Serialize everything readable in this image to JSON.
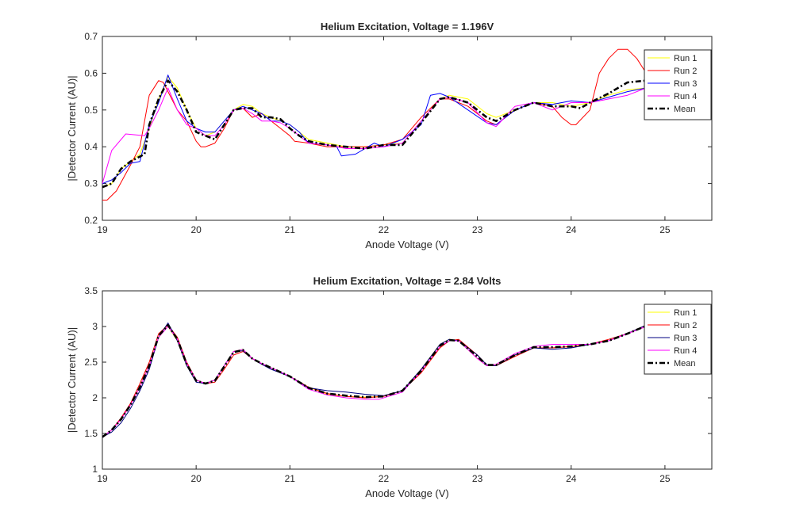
{
  "chart_data": [
    {
      "type": "line",
      "title": "Helium Excitation, Voltage = 1.196V",
      "xlabel": "Anode Voltage (V)",
      "ylabel": "|Detector Current (AU)|",
      "xlim": [
        19,
        25.5
      ],
      "ylim": [
        0.2,
        0.7
      ],
      "xticks": [
        19,
        20,
        21,
        22,
        23,
        24,
        25
      ],
      "yticks": [
        0.2,
        0.3,
        0.4,
        0.5,
        0.6,
        0.7
      ],
      "xtick_labels": [
        "19",
        "20",
        "21",
        "22",
        "23",
        "24",
        "25"
      ],
      "ytick_labels": [
        "0.2",
        "0.3",
        "0.4",
        "0.5",
        "0.6",
        "0.7"
      ],
      "grid": false,
      "legend_position": "top-right",
      "series": [
        {
          "name": "Run 1",
          "color": "#ffff00",
          "style": "solid",
          "x": [
            19.0,
            19.1,
            19.2,
            19.3,
            19.4,
            19.5,
            19.6,
            19.7,
            19.8,
            19.9,
            20.0,
            20.1,
            20.2,
            20.3,
            20.4,
            20.5,
            20.6,
            20.7,
            20.8,
            20.9,
            21.0,
            21.1,
            21.2,
            21.4,
            21.6,
            21.8,
            22.0,
            22.2,
            22.4,
            22.6,
            22.7,
            22.9,
            23.1,
            23.2,
            23.4,
            23.6,
            23.8,
            24.0,
            24.2,
            24.4,
            24.6,
            24.8
          ],
          "y": [
            0.29,
            0.3,
            0.34,
            0.36,
            0.38,
            0.45,
            0.53,
            0.59,
            0.56,
            0.5,
            0.45,
            0.43,
            0.44,
            0.47,
            0.5,
            0.515,
            0.51,
            0.49,
            0.48,
            0.47,
            0.46,
            0.44,
            0.42,
            0.41,
            0.4,
            0.4,
            0.405,
            0.41,
            0.47,
            0.53,
            0.54,
            0.53,
            0.49,
            0.48,
            0.5,
            0.52,
            0.52,
            0.51,
            0.52,
            0.54,
            0.555,
            0.56
          ]
        },
        {
          "name": "Run 2",
          "color": "#ff0000",
          "style": "solid",
          "x": [
            19.0,
            19.05,
            19.15,
            19.3,
            19.4,
            19.5,
            19.6,
            19.65,
            19.7,
            19.8,
            19.9,
            20.0,
            20.05,
            20.1,
            20.2,
            20.3,
            20.4,
            20.5,
            20.6,
            20.7,
            20.8,
            20.9,
            21.0,
            21.05,
            21.2,
            21.4,
            21.6,
            21.8,
            22.0,
            22.2,
            22.4,
            22.6,
            22.7,
            22.9,
            23.1,
            23.2,
            23.4,
            23.6,
            23.8,
            23.9,
            24.0,
            24.05,
            24.2,
            24.3,
            24.4,
            24.5,
            24.6,
            24.7,
            24.8
          ],
          "y": [
            0.255,
            0.255,
            0.28,
            0.35,
            0.4,
            0.54,
            0.58,
            0.575,
            0.55,
            0.5,
            0.47,
            0.415,
            0.4,
            0.4,
            0.41,
            0.45,
            0.5,
            0.505,
            0.48,
            0.49,
            0.47,
            0.45,
            0.43,
            0.415,
            0.41,
            0.4,
            0.4,
            0.4,
            0.405,
            0.42,
            0.48,
            0.53,
            0.53,
            0.51,
            0.47,
            0.46,
            0.5,
            0.52,
            0.51,
            0.48,
            0.46,
            0.46,
            0.5,
            0.6,
            0.64,
            0.665,
            0.665,
            0.64,
            0.6
          ]
        },
        {
          "name": "Run 3",
          "color": "#0000ff",
          "style": "solid",
          "x": [
            19.0,
            19.1,
            19.2,
            19.3,
            19.4,
            19.5,
            19.6,
            19.7,
            19.8,
            19.9,
            20.0,
            20.1,
            20.2,
            20.3,
            20.4,
            20.5,
            20.6,
            20.7,
            20.8,
            20.9,
            21.0,
            21.1,
            21.2,
            21.4,
            21.5,
            21.55,
            21.7,
            21.9,
            22.0,
            22.2,
            22.4,
            22.5,
            22.6,
            22.7,
            22.9,
            23.1,
            23.2,
            23.4,
            23.6,
            23.8,
            24.0,
            24.2,
            24.4,
            24.6,
            24.8
          ],
          "y": [
            0.3,
            0.31,
            0.33,
            0.355,
            0.36,
            0.46,
            0.52,
            0.595,
            0.53,
            0.47,
            0.45,
            0.44,
            0.44,
            0.47,
            0.5,
            0.51,
            0.5,
            0.49,
            0.47,
            0.47,
            0.46,
            0.44,
            0.41,
            0.405,
            0.4,
            0.375,
            0.38,
            0.41,
            0.4,
            0.42,
            0.46,
            0.54,
            0.545,
            0.535,
            0.5,
            0.465,
            0.46,
            0.5,
            0.52,
            0.515,
            0.525,
            0.52,
            0.535,
            0.55,
            0.56
          ]
        },
        {
          "name": "Run 4",
          "color": "#ff00ff",
          "style": "solid",
          "x": [
            19.0,
            19.1,
            19.25,
            19.45,
            19.5,
            19.6,
            19.7,
            19.8,
            19.9,
            20.0,
            20.1,
            20.2,
            20.3,
            20.4,
            20.5,
            20.6,
            20.7,
            20.8,
            20.9,
            21.0,
            21.2,
            21.4,
            21.6,
            21.8,
            22.0,
            22.2,
            22.4,
            22.6,
            22.7,
            22.9,
            23.1,
            23.2,
            23.4,
            23.6,
            23.8,
            24.0,
            24.2,
            24.4,
            24.6,
            24.8
          ],
          "y": [
            0.3,
            0.39,
            0.435,
            0.43,
            0.45,
            0.5,
            0.56,
            0.5,
            0.46,
            0.45,
            0.43,
            0.43,
            0.46,
            0.5,
            0.505,
            0.49,
            0.47,
            0.47,
            0.465,
            0.45,
            0.41,
            0.405,
            0.395,
            0.395,
            0.4,
            0.41,
            0.47,
            0.53,
            0.535,
            0.52,
            0.465,
            0.455,
            0.51,
            0.52,
            0.5,
            0.52,
            0.52,
            0.53,
            0.54,
            0.56
          ]
        },
        {
          "name": "Mean",
          "color": "#000000",
          "style": "dashdot",
          "x": [
            19.0,
            19.1,
            19.2,
            19.3,
            19.45,
            19.5,
            19.6,
            19.7,
            19.8,
            19.9,
            20.0,
            20.1,
            20.2,
            20.3,
            20.4,
            20.5,
            20.6,
            20.7,
            20.8,
            20.9,
            21.0,
            21.1,
            21.2,
            21.4,
            21.6,
            21.8,
            22.0,
            22.2,
            22.4,
            22.6,
            22.7,
            22.9,
            23.1,
            23.2,
            23.4,
            23.6,
            23.8,
            24.0,
            24.1,
            24.2,
            24.4,
            24.6,
            24.8
          ],
          "y": [
            0.29,
            0.3,
            0.34,
            0.36,
            0.38,
            0.46,
            0.53,
            0.58,
            0.55,
            0.5,
            0.44,
            0.43,
            0.42,
            0.46,
            0.5,
            0.505,
            0.505,
            0.48,
            0.48,
            0.475,
            0.45,
            0.43,
            0.415,
            0.405,
            0.4,
            0.395,
            0.405,
            0.405,
            0.465,
            0.53,
            0.535,
            0.52,
            0.48,
            0.47,
            0.5,
            0.52,
            0.51,
            0.51,
            0.505,
            0.52,
            0.545,
            0.575,
            0.58
          ]
        }
      ]
    },
    {
      "type": "line",
      "title": "Helium Excitation, Voltage = 2.84 Volts",
      "xlabel": "Anode Voltage (V)",
      "ylabel": "|Detector Current (AU)|",
      "xlim": [
        19,
        25.5
      ],
      "ylim": [
        1,
        3.5
      ],
      "xticks": [
        19,
        20,
        21,
        22,
        23,
        24,
        25
      ],
      "yticks": [
        1,
        1.5,
        2,
        2.5,
        3,
        3.5
      ],
      "xtick_labels": [
        "19",
        "20",
        "21",
        "22",
        "23",
        "24",
        "25"
      ],
      "ytick_labels": [
        "1",
        "1.5",
        "2",
        "2.5",
        "3",
        "3.5"
      ],
      "grid": false,
      "legend_position": "top-right",
      "series": [
        {
          "name": "Run 1",
          "color": "#ffff00",
          "style": "solid",
          "x": [
            19.0,
            19.1,
            19.2,
            19.3,
            19.4,
            19.5,
            19.6,
            19.7,
            19.8,
            19.9,
            20.0,
            20.1,
            20.2,
            20.3,
            20.4,
            20.5,
            20.6,
            20.7,
            20.8,
            21.0,
            21.2,
            21.4,
            21.6,
            21.8,
            22.0,
            22.2,
            22.4,
            22.6,
            22.7,
            22.8,
            23.0,
            23.1,
            23.2,
            23.4,
            23.6,
            23.8,
            24.0,
            24.2,
            24.4,
            24.6,
            24.8
          ],
          "y": [
            1.45,
            1.55,
            1.7,
            1.9,
            2.15,
            2.45,
            2.85,
            3.0,
            2.8,
            2.45,
            2.25,
            2.2,
            2.25,
            2.45,
            2.65,
            2.68,
            2.55,
            2.48,
            2.42,
            2.3,
            2.15,
            2.05,
            2.02,
            2.01,
            2.02,
            2.1,
            2.4,
            2.75,
            2.82,
            2.8,
            2.55,
            2.45,
            2.46,
            2.6,
            2.7,
            2.7,
            2.72,
            2.75,
            2.8,
            2.9,
            3.0
          ]
        },
        {
          "name": "Run 2",
          "color": "#ff0000",
          "style": "solid",
          "x": [
            19.0,
            19.1,
            19.2,
            19.3,
            19.4,
            19.5,
            19.6,
            19.7,
            19.8,
            19.9,
            20.0,
            20.1,
            20.2,
            20.3,
            20.4,
            20.5,
            20.6,
            20.7,
            20.8,
            21.0,
            21.2,
            21.4,
            21.6,
            21.8,
            22.0,
            22.2,
            22.4,
            22.6,
            22.7,
            22.8,
            23.0,
            23.1,
            23.2,
            23.4,
            23.6,
            23.8,
            24.0,
            24.2,
            24.4,
            24.6,
            24.8
          ],
          "y": [
            1.45,
            1.55,
            1.72,
            1.92,
            2.2,
            2.5,
            2.9,
            3.02,
            2.85,
            2.5,
            2.25,
            2.2,
            2.22,
            2.4,
            2.6,
            2.65,
            2.55,
            2.48,
            2.42,
            2.3,
            2.15,
            2.06,
            2.02,
            2.0,
            2.02,
            2.1,
            2.35,
            2.7,
            2.8,
            2.82,
            2.6,
            2.46,
            2.45,
            2.58,
            2.7,
            2.7,
            2.72,
            2.75,
            2.82,
            2.9,
            3.02
          ]
        },
        {
          "name": "Run 3",
          "color": "#000080",
          "style": "solid",
          "x": [
            19.0,
            19.1,
            19.2,
            19.3,
            19.4,
            19.5,
            19.6,
            19.7,
            19.8,
            19.9,
            20.0,
            20.1,
            20.2,
            20.3,
            20.4,
            20.5,
            20.6,
            20.7,
            20.8,
            21.0,
            21.2,
            21.4,
            21.6,
            21.8,
            22.0,
            22.2,
            22.4,
            22.6,
            22.7,
            22.8,
            23.0,
            23.1,
            23.2,
            23.4,
            23.6,
            23.8,
            24.0,
            24.2,
            24.4,
            24.6,
            24.8
          ],
          "y": [
            1.45,
            1.52,
            1.65,
            1.85,
            2.1,
            2.4,
            2.85,
            3.05,
            2.8,
            2.45,
            2.22,
            2.2,
            2.25,
            2.45,
            2.65,
            2.66,
            2.55,
            2.47,
            2.4,
            2.3,
            2.14,
            2.1,
            2.08,
            2.05,
            2.03,
            2.1,
            2.4,
            2.75,
            2.82,
            2.8,
            2.6,
            2.46,
            2.45,
            2.6,
            2.7,
            2.68,
            2.7,
            2.75,
            2.8,
            2.9,
            3.02
          ]
        },
        {
          "name": "Run 4",
          "color": "#ff00ff",
          "style": "solid",
          "x": [
            19.0,
            19.1,
            19.2,
            19.3,
            19.4,
            19.5,
            19.6,
            19.7,
            19.8,
            19.9,
            20.0,
            20.1,
            20.2,
            20.3,
            20.4,
            20.5,
            20.6,
            20.7,
            20.8,
            21.0,
            21.2,
            21.4,
            21.6,
            21.8,
            21.95,
            22.2,
            22.4,
            22.6,
            22.7,
            22.8,
            23.0,
            23.1,
            23.2,
            23.4,
            23.6,
            23.8,
            24.0,
            24.2,
            24.4,
            24.6,
            24.8
          ],
          "y": [
            1.45,
            1.55,
            1.7,
            1.9,
            2.15,
            2.45,
            2.85,
            3.0,
            2.82,
            2.48,
            2.25,
            2.2,
            2.25,
            2.45,
            2.65,
            2.68,
            2.55,
            2.48,
            2.42,
            2.3,
            2.12,
            2.04,
            2.0,
            1.98,
            1.98,
            2.08,
            2.38,
            2.72,
            2.8,
            2.8,
            2.55,
            2.45,
            2.47,
            2.62,
            2.72,
            2.75,
            2.75,
            2.75,
            2.8,
            2.9,
            3.0
          ]
        },
        {
          "name": "Mean",
          "color": "#000000",
          "style": "dashdot",
          "x": [
            19.0,
            19.1,
            19.2,
            19.3,
            19.4,
            19.5,
            19.6,
            19.7,
            19.8,
            19.9,
            20.0,
            20.1,
            20.2,
            20.3,
            20.4,
            20.5,
            20.6,
            20.7,
            20.8,
            21.0,
            21.2,
            21.4,
            21.6,
            21.8,
            22.0,
            22.2,
            22.4,
            22.6,
            22.7,
            22.8,
            23.0,
            23.1,
            23.2,
            23.4,
            23.6,
            23.8,
            24.0,
            24.2,
            24.4,
            24.6,
            24.8
          ],
          "y": [
            1.45,
            1.55,
            1.7,
            1.9,
            2.15,
            2.45,
            2.87,
            3.02,
            2.82,
            2.47,
            2.24,
            2.2,
            2.24,
            2.44,
            2.64,
            2.67,
            2.55,
            2.48,
            2.42,
            2.3,
            2.14,
            2.06,
            2.03,
            2.01,
            2.02,
            2.1,
            2.38,
            2.73,
            2.81,
            2.8,
            2.58,
            2.46,
            2.46,
            2.6,
            2.71,
            2.71,
            2.72,
            2.75,
            2.8,
            2.9,
            3.01
          ]
        }
      ]
    }
  ]
}
